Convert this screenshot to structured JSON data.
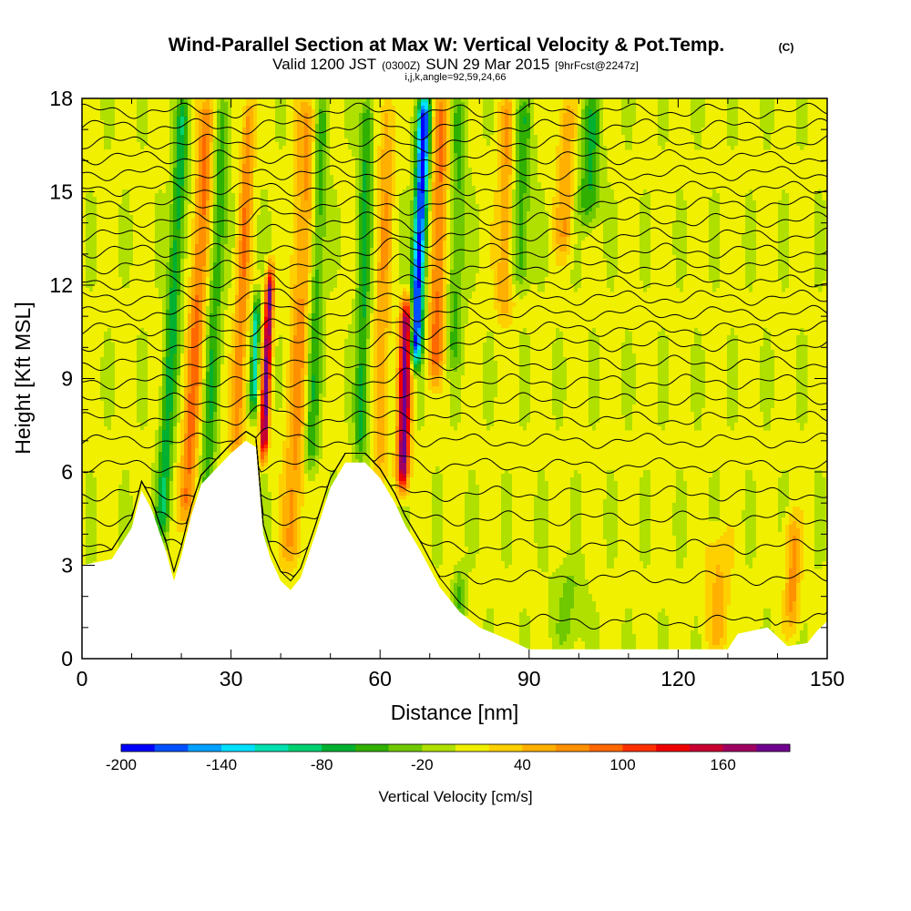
{
  "title": {
    "main": "Wind-Parallel Section at Max W: Vertical Velocity & Pot.Temp.",
    "copyright": "(C)",
    "valid_prefix": "Valid 1200 JST",
    "valid_utc": "(0300Z)",
    "valid_date": "SUN 29 Mar 2015",
    "forecast": "[9hrFcst@2247z]",
    "params": "i,j,k,angle=92,59,24,66"
  },
  "chart_data": {
    "type": "heatmap",
    "xlabel": "Distance [nm]",
    "ylabel": "Height [Kft MSL]",
    "xlim": [
      0,
      150
    ],
    "ylim": [
      0,
      18
    ],
    "xticks": [
      0,
      30,
      60,
      90,
      120,
      150
    ],
    "xtick_labels": [
      "0",
      "30",
      "60",
      "90",
      "120",
      "150"
    ],
    "yticks": [
      0,
      3,
      6,
      9,
      12,
      15,
      18
    ],
    "ytick_labels": [
      "0",
      "3",
      "6",
      "9",
      "12",
      "15",
      "18"
    ],
    "colorbar": {
      "title": "Vertical Velocity [cm/s]",
      "min": -200,
      "max": 200,
      "step": 20,
      "tick_values": [
        -200,
        -140,
        -80,
        -20,
        40,
        100,
        160
      ],
      "tick_labels": [
        "-200",
        "-140",
        "-80",
        "-20",
        "40",
        "100",
        "160"
      ],
      "colors": [
        "#0000ff",
        "#0050ff",
        "#00a0ff",
        "#00e0ff",
        "#00e0b0",
        "#00d070",
        "#00b030",
        "#30b000",
        "#70c800",
        "#b0e000",
        "#f0f000",
        "#ffd000",
        "#ffb000",
        "#ff9000",
        "#ff6800",
        "#ff3000",
        "#ee0000",
        "#c80030",
        "#a00060",
        "#700090"
      ]
    },
    "terrain_profile": [
      [
        0,
        3.0
      ],
      [
        6,
        3.2
      ],
      [
        10,
        4.2
      ],
      [
        12,
        5.4
      ],
      [
        14,
        4.8
      ],
      [
        17,
        3.4
      ],
      [
        18.5,
        2.5
      ],
      [
        20,
        3.3
      ],
      [
        22,
        4.6
      ],
      [
        24,
        5.6
      ],
      [
        27,
        6.1
      ],
      [
        30,
        6.6
      ],
      [
        33,
        7.0
      ],
      [
        35,
        6.8
      ],
      [
        36.5,
        4.0
      ],
      [
        38,
        3.2
      ],
      [
        40,
        2.5
      ],
      [
        42,
        2.2
      ],
      [
        44,
        2.6
      ],
      [
        47,
        4.0
      ],
      [
        50,
        5.5
      ],
      [
        53,
        6.3
      ],
      [
        57,
        6.3
      ],
      [
        60,
        5.8
      ],
      [
        63,
        5.0
      ],
      [
        65,
        4.3
      ],
      [
        68,
        3.5
      ],
      [
        72,
        2.3
      ],
      [
        76,
        1.5
      ],
      [
        80,
        1.0
      ],
      [
        86,
        0.6
      ],
      [
        90,
        0.3
      ],
      [
        100,
        0.3
      ],
      [
        110,
        0.3
      ],
      [
        120,
        0.3
      ],
      [
        130,
        0.3
      ],
      [
        132,
        0.8
      ],
      [
        138,
        1.0
      ],
      [
        142,
        0.4
      ],
      [
        146,
        0.5
      ],
      [
        148,
        0.9
      ],
      [
        150,
        1.2
      ]
    ],
    "vertical_velocity_features": [
      {
        "x": 36.5,
        "y_bottom": 6.5,
        "y_top": 12.5,
        "peak": 180,
        "width": 0.8,
        "tilt": 0.6
      },
      {
        "x": 64.5,
        "y_bottom": 5.5,
        "y_top": 11.5,
        "peak": 190,
        "width": 1.2,
        "tilt": 0.4
      },
      {
        "x": 67,
        "y_bottom": 9.5,
        "y_top": 18,
        "peak": -200,
        "width": 1.3,
        "tilt": 0.6
      },
      {
        "x": 34.5,
        "y_bottom": 8,
        "y_top": 11.5,
        "peak": -120,
        "width": 0.7,
        "tilt": 0.5
      },
      {
        "x": 16,
        "y_bottom": 4,
        "y_top": 18,
        "peak": -80,
        "width": 1.4,
        "tilt": 0.8
      },
      {
        "x": 21,
        "y_bottom": 4.5,
        "y_top": 18,
        "peak": 80,
        "width": 1.6,
        "tilt": 0.8
      },
      {
        "x": 25,
        "y_bottom": 5,
        "y_top": 18,
        "peak": -60,
        "width": 1.4,
        "tilt": 0.7
      },
      {
        "x": 31,
        "y_bottom": 6.5,
        "y_top": 18,
        "peak": 70,
        "width": 1.3,
        "tilt": 0.6
      },
      {
        "x": 42,
        "y_bottom": 3,
        "y_top": 18,
        "peak": 60,
        "width": 2.0,
        "tilt": 0.6
      },
      {
        "x": 46,
        "y_bottom": 6,
        "y_top": 18,
        "peak": -60,
        "width": 1.4,
        "tilt": 0.5
      },
      {
        "x": 56,
        "y_bottom": 6.5,
        "y_top": 18,
        "peak": -70,
        "width": 1.3,
        "tilt": 0.3
      },
      {
        "x": 60,
        "y_bottom": 6,
        "y_top": 18,
        "peak": 50,
        "width": 1.5,
        "tilt": 0.3
      },
      {
        "x": 71,
        "y_bottom": 9,
        "y_top": 18,
        "peak": 80,
        "width": 1.6,
        "tilt": 0.4
      },
      {
        "x": 75,
        "y_bottom": 9.5,
        "y_top": 18,
        "peak": -50,
        "width": 1.6,
        "tilt": 0.3
      },
      {
        "x": 85,
        "y_bottom": 11,
        "y_top": 18,
        "peak": 60,
        "width": 1.8,
        "tilt": 0.3
      },
      {
        "x": 88,
        "y_bottom": 12,
        "y_top": 18,
        "peak": -60,
        "width": 2.0,
        "tilt": 0.3
      },
      {
        "x": 97,
        "y_bottom": 13,
        "y_top": 18,
        "peak": 50,
        "width": 1.8,
        "tilt": 0.3
      },
      {
        "x": 102,
        "y_bottom": 14,
        "y_top": 18,
        "peak": -70,
        "width": 2.0,
        "tilt": 0.3
      },
      {
        "x": 98,
        "y_bottom": 0.3,
        "y_top": 3,
        "peak": -30,
        "width": 3.0,
        "tilt": 0
      },
      {
        "x": 76,
        "y_bottom": 1.2,
        "y_top": 2.8,
        "peak": -50,
        "width": 1.2,
        "tilt": 0
      },
      {
        "x": 128,
        "y_bottom": 0.3,
        "y_top": 4.0,
        "peak": 40,
        "width": 2.5,
        "tilt": 0
      },
      {
        "x": 143,
        "y_bottom": 1.0,
        "y_top": 4.5,
        "peak": 60,
        "width": 1.5,
        "tilt": 0
      }
    ],
    "potential_temperature_contours_y": [
      1.2,
      2.6,
      3.6,
      4.5,
      5.3,
      6.2,
      7.0,
      7.7,
      8.3,
      8.9,
      9.5,
      10.1,
      10.6,
      11.1,
      11.6,
      12.1,
      12.6,
      13.1,
      13.6,
      14.1,
      14.6,
      15.1,
      15.6,
      16.1,
      16.6,
      17.1,
      17.6
    ]
  }
}
